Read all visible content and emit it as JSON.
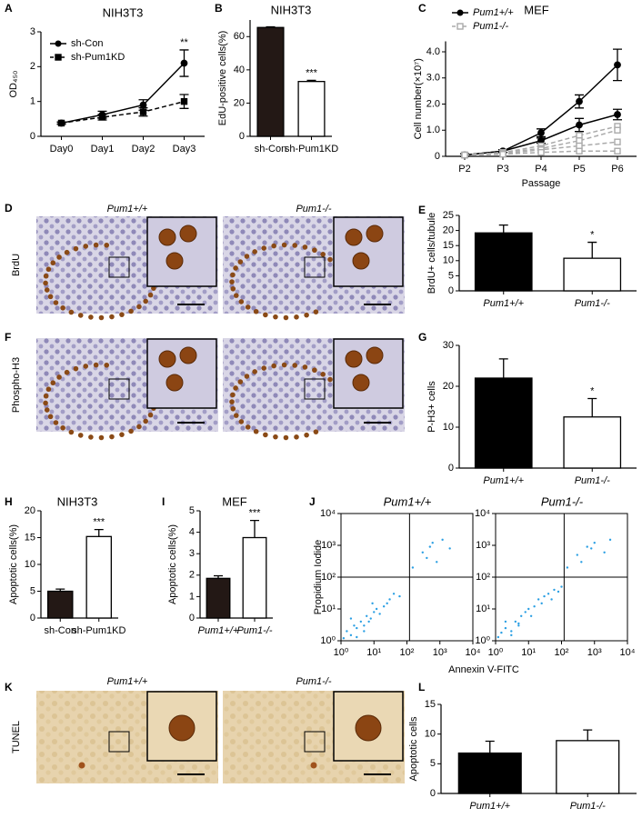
{
  "chart_data": [
    {
      "type": "line",
      "panel": "A",
      "title": "NIH3T3",
      "ylabel": "OD₄₅₀",
      "categories": [
        "Day0",
        "Day1",
        "Day2",
        "Day3"
      ],
      "series": [
        {
          "name": "sh-Con",
          "color": "#000000",
          "marker": "circle",
          "marker_fill": "#000000",
          "dashed": false,
          "values": [
            0.38,
            0.62,
            0.9,
            2.1
          ],
          "errors": [
            0.03,
            0.1,
            0.15,
            0.38
          ]
        },
        {
          "name": "sh-Pum1KD",
          "color": "#000000",
          "marker": "square",
          "marker_fill": "#000000",
          "dashed": true,
          "values": [
            0.38,
            0.55,
            0.7,
            1.0
          ],
          "errors": [
            0.03,
            0.08,
            0.12,
            0.2
          ]
        }
      ],
      "ylim": [
        0,
        3
      ],
      "yticks": [
        0,
        1,
        2,
        3
      ],
      "legend": "upper left",
      "annotations": [
        {
          "text": "**",
          "category": "Day3"
        }
      ]
    },
    {
      "type": "bar",
      "panel": "B",
      "title": "NIH3T3",
      "ylabel": "EdU-positive cells(%)",
      "categories": [
        "sh-Con",
        "sh-Pum1KD"
      ],
      "values": [
        65.5,
        33
      ],
      "errors": [
        0.4,
        0.7
      ],
      "colors": [
        "#231815",
        "#ffffff"
      ],
      "ylim": [
        0,
        70
      ],
      "yticks": [
        0,
        20,
        40,
        60
      ],
      "annotations": [
        {
          "text": "***",
          "category": "sh-Pum1KD"
        }
      ]
    },
    {
      "type": "line",
      "panel": "C",
      "title": "MEF",
      "ylabel": "Cell number(×10⁷)",
      "xlabel": "Passage",
      "categories": [
        "P2",
        "P3",
        "P4",
        "P5",
        "P6"
      ],
      "series": [
        {
          "name": "Pum1+/+",
          "color": "#000000",
          "marker": "circle",
          "marker_fill": "#000000",
          "dashed": false,
          "values": [
            [
              0.05,
              0.2,
              0.9,
              2.1,
              3.5
            ],
            [
              0.05,
              0.2,
              0.6,
              1.2,
              1.6
            ]
          ],
          "errors": [
            [
              0.05,
              0.05,
              0.15,
              0.25,
              0.6
            ],
            [
              0.05,
              0.05,
              0.1,
              0.25,
              0.2
            ]
          ]
        },
        {
          "name": "Pum1-/-",
          "color": "#aaaaaa",
          "marker": "square",
          "marker_fill": "#ffffff",
          "dashed": true,
          "values": [
            [
              0.05,
              0.15,
              0.4,
              0.8,
              1.15
            ],
            [
              0.05,
              0.15,
              0.3,
              0.6,
              1.0
            ],
            [
              0.05,
              0.1,
              0.25,
              0.4,
              0.55
            ],
            [
              0.05,
              0.08,
              0.15,
              0.2,
              0.2
            ]
          ]
        }
      ],
      "ylim": [
        0,
        4.4
      ],
      "yticks": [
        0,
        {
          "value": 1,
          "label": "1.0"
        },
        {
          "value": 2,
          "label": "2.0"
        },
        {
          "value": 3,
          "label": "3.0"
        },
        {
          "value": 4,
          "label": "4.0"
        }
      ],
      "legend": "upper left",
      "italic_legend": true
    },
    {
      "type": "bar",
      "panel": "E",
      "ylabel": "BrdU+ cells/tubule",
      "categories": [
        "Pum1+/+",
        "Pum1-/-"
      ],
      "values": [
        19.2,
        10.8
      ],
      "errors": [
        2.6,
        5.3
      ],
      "colors": [
        "#000000",
        "#ffffff"
      ],
      "ylim": [
        0,
        25
      ],
      "yticks": [
        0,
        5,
        10,
        15,
        20,
        25
      ],
      "italic_labels": true,
      "annotations": [
        {
          "text": "*",
          "category": "Pum1-/-"
        }
      ]
    },
    {
      "type": "bar",
      "panel": "G",
      "ylabel": "P-H3+ cells",
      "categories": [
        "Pum1+/+",
        "Pum1-/-"
      ],
      "values": [
        22,
        12.5
      ],
      "errors": [
        4.7,
        4.5
      ],
      "colors": [
        "#000000",
        "#ffffff"
      ],
      "ylim": [
        0,
        30
      ],
      "yticks": [
        0,
        10,
        20,
        30
      ],
      "italic_labels": true,
      "annotations": [
        {
          "text": "*",
          "category": "Pum1-/-"
        }
      ]
    },
    {
      "type": "bar",
      "panel": "H",
      "title": "NIH3T3",
      "ylabel": "Apoptotic cells(%)",
      "categories": [
        "sh-Con",
        "sh-Pum1KD"
      ],
      "values": [
        5,
        15.2
      ],
      "errors": [
        0.4,
        1.3
      ],
      "colors": [
        "#231815",
        "#ffffff"
      ],
      "ylim": [
        0,
        20
      ],
      "yticks": [
        0,
        5,
        10,
        15,
        20
      ],
      "annotations": [
        {
          "text": "***",
          "category": "sh-Pum1KD"
        }
      ]
    },
    {
      "type": "bar",
      "panel": "I",
      "title": "MEF",
      "ylabel": "Apoptotic cells(%)",
      "categories": [
        "Pum1+/+",
        "Pum1-/-"
      ],
      "values": [
        1.85,
        3.75
      ],
      "errors": [
        0.12,
        0.8
      ],
      "colors": [
        "#231815",
        "#ffffff"
      ],
      "ylim": [
        0,
        5
      ],
      "yticks": [
        0,
        1,
        2,
        3,
        4,
        5
      ],
      "italic_labels": true,
      "annotations": [
        {
          "text": "***",
          "category": "Pum1-/-"
        }
      ]
    },
    {
      "type": "scatter",
      "panel": "J",
      "title": "Pum1+/+",
      "italic_title": true,
      "ylabel": "Propidium Iodide",
      "xlabel": "Annexin V-FITC",
      "log": true,
      "frame": true,
      "color": "#2b9fe3",
      "x": [
        1.2,
        1.5,
        2,
        2.5,
        3,
        4,
        5,
        6,
        8,
        10,
        12,
        15,
        20,
        25,
        30,
        3,
        5,
        7,
        40,
        60,
        2,
        9,
        300,
        500,
        800,
        1200,
        2000,
        400,
        600,
        150
      ],
      "y": [
        1.2,
        2,
        1.5,
        3,
        2.5,
        4,
        3,
        6,
        5,
        8,
        10,
        7,
        12,
        15,
        20,
        1.3,
        2,
        4,
        30,
        25,
        5,
        15,
        600,
        900,
        300,
        1500,
        800,
        400,
        1200,
        200
      ],
      "xlim": [
        1,
        10000
      ],
      "ylim": [
        1,
        10000
      ],
      "xticks": [
        {
          "value": 1,
          "label": "10⁰"
        },
        {
          "value": 10,
          "label": "10¹"
        },
        {
          "value": 100,
          "label": "10²"
        },
        {
          "value": 1000,
          "label": "10³"
        },
        {
          "value": 10000,
          "label": "10⁴"
        }
      ],
      "yticks": [
        {
          "value": 1,
          "label": "10⁰"
        },
        {
          "value": 10,
          "label": "10¹"
        },
        {
          "value": 100,
          "label": "10²"
        },
        {
          "value": 1000,
          "label": "10³"
        },
        {
          "value": 10000,
          "label": "10⁴"
        }
      ],
      "quadrant": {
        "x": 120,
        "y": 100
      }
    },
    {
      "type": "scatter",
      "title": "Pum1-/-",
      "italic_title": true,
      "log": true,
      "frame": true,
      "color": "#2b9fe3",
      "x": [
        1.2,
        1.5,
        2,
        3,
        4,
        5,
        6,
        8,
        10,
        15,
        20,
        30,
        40,
        60,
        80,
        100,
        3,
        5,
        12,
        25,
        50,
        2,
        300,
        600,
        1000,
        2000,
        3000,
        400,
        800,
        150
      ],
      "y": [
        1.3,
        1.8,
        2.5,
        2,
        4,
        3.5,
        6,
        8,
        10,
        12,
        20,
        25,
        30,
        40,
        35,
        50,
        1.5,
        3,
        6,
        15,
        20,
        4,
        500,
        900,
        1200,
        600,
        1500,
        300,
        800,
        200
      ],
      "xlim": [
        1,
        10000
      ],
      "ylim": [
        1,
        10000
      ],
      "xticks": [
        {
          "value": 1,
          "label": "10⁰"
        },
        {
          "value": 10,
          "label": "10¹"
        },
        {
          "value": 100,
          "label": "10²"
        },
        {
          "value": 1000,
          "label": "10³"
        },
        {
          "value": 10000,
          "label": "10⁴"
        }
      ],
      "yticks": [
        {
          "value": 1,
          "label": "10⁰"
        },
        {
          "value": 10,
          "label": "10¹"
        },
        {
          "value": 100,
          "label": "10²"
        },
        {
          "value": 1000,
          "label": "10³"
        },
        {
          "value": 10000,
          "label": "10⁴"
        }
      ],
      "quadrant": {
        "x": 120,
        "y": 100
      }
    },
    {
      "type": "bar",
      "panel": "L",
      "ylabel": "Apoptotic cells",
      "categories": [
        "Pum1+/+",
        "Pum1-/-"
      ],
      "values": [
        6.8,
        8.9
      ],
      "errors": [
        2.0,
        1.8
      ],
      "colors": [
        "#000000",
        "#ffffff"
      ],
      "ylim": [
        0,
        15
      ],
      "yticks": [
        0,
        5,
        10,
        15
      ],
      "italic_labels": true
    }
  ],
  "images": [
    {
      "panel": "D",
      "label": "BrdU",
      "columns": [
        "Pum1+/+",
        "Pum1-/-"
      ]
    },
    {
      "panel": "F",
      "label": "Phospho-H3"
    },
    {
      "panel": "K",
      "label": "TUNEL",
      "columns": [
        "Pum1+/+",
        "Pum1-/-"
      ]
    }
  ]
}
